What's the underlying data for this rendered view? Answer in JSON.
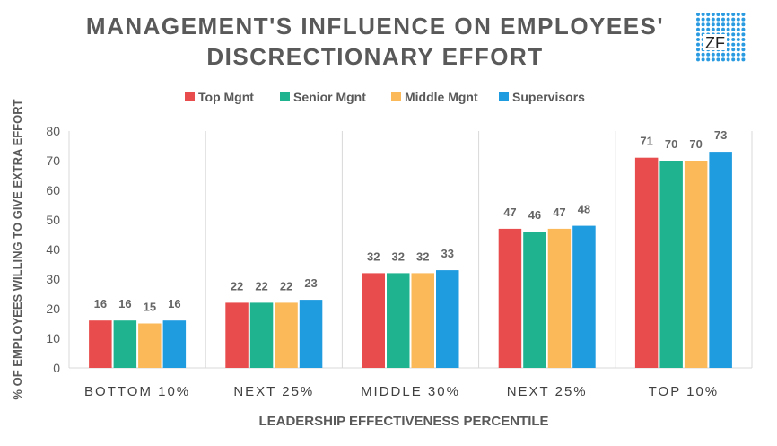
{
  "logo_text": "ZF",
  "colors": {
    "Top Mgnt": "#e84c4c",
    "Senior Mgnt": "#1fb48f",
    "Middle Mgnt": "#fbb95a",
    "Supervisors": "#1f9be0",
    "text": "#595959",
    "grid": "#d9d9d9"
  },
  "chart_data": {
    "type": "bar",
    "title": [
      "MANAGEMENT'S INFLUENCE ON EMPLOYEES'",
      "DISCRECTIONARY EFFORT"
    ],
    "xlabel": "LEADERSHIP EFFECTIVENESS PERCENTILE",
    "ylabel": "% OF EMPLOYEES WILLING TO GIVE EXTRA EFFORT",
    "ylim": [
      0,
      80
    ],
    "yticks": [
      0,
      10,
      20,
      30,
      40,
      50,
      60,
      70,
      80
    ],
    "legend_position": "top",
    "categories": [
      "BOTTOM 10%",
      "NEXT 25%",
      "MIDDLE 30%",
      "NEXT 25%",
      "TOP 10%"
    ],
    "series": [
      {
        "name": "Top Mgnt",
        "values": [
          16,
          22,
          32,
          47,
          71
        ]
      },
      {
        "name": "Senior Mgnt",
        "values": [
          16,
          22,
          32,
          46,
          70
        ]
      },
      {
        "name": "Middle Mgnt",
        "values": [
          15,
          22,
          32,
          47,
          70
        ]
      },
      {
        "name": "Supervisors",
        "values": [
          16,
          23,
          33,
          48,
          73
        ]
      }
    ]
  }
}
